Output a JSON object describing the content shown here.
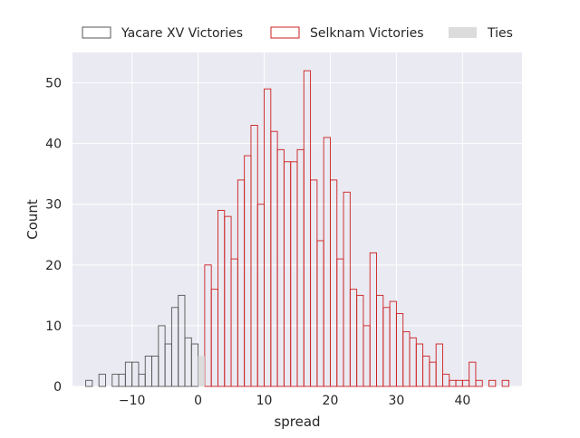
{
  "chart_data": {
    "type": "bar",
    "chart_kind": "histogram",
    "title": "",
    "xlabel": "spread",
    "ylabel": "Count",
    "xlim": [
      -19,
      49
    ],
    "ylim": [
      0,
      55
    ],
    "xticks": [
      -10,
      0,
      10,
      20,
      30,
      40
    ],
    "yticks": [
      0,
      10,
      20,
      30,
      40,
      50
    ],
    "bin_width": 1,
    "grid": true,
    "legend_placement": "top",
    "legend_columns": 3,
    "series": [
      {
        "name": "Yacare XV Victories",
        "style": "step-outline",
        "color": "#555555",
        "bins": [
          [
            -17,
            1
          ],
          [
            -16,
            0
          ],
          [
            -15,
            2
          ],
          [
            -14,
            0
          ],
          [
            -13,
            2
          ],
          [
            -12,
            2
          ],
          [
            -11,
            4
          ],
          [
            -10,
            4
          ],
          [
            -9,
            2
          ],
          [
            -8,
            5
          ],
          [
            -7,
            5
          ],
          [
            -6,
            10
          ],
          [
            -5,
            7
          ],
          [
            -4,
            13
          ],
          [
            -3,
            15
          ],
          [
            -2,
            8
          ],
          [
            -1,
            7
          ]
        ]
      },
      {
        "name": "Selknam Victories",
        "style": "step-outline",
        "color": "#cc1f1f",
        "bins": [
          [
            1,
            20
          ],
          [
            2,
            16
          ],
          [
            3,
            29
          ],
          [
            4,
            28
          ],
          [
            5,
            21
          ],
          [
            6,
            34
          ],
          [
            7,
            38
          ],
          [
            8,
            43
          ],
          [
            9,
            30
          ],
          [
            10,
            49
          ],
          [
            11,
            42
          ],
          [
            12,
            39
          ],
          [
            13,
            37
          ],
          [
            14,
            37
          ],
          [
            15,
            39
          ],
          [
            16,
            52
          ],
          [
            17,
            34
          ],
          [
            18,
            24
          ],
          [
            19,
            41
          ],
          [
            20,
            34
          ],
          [
            21,
            21
          ],
          [
            22,
            32
          ],
          [
            23,
            16
          ],
          [
            24,
            15
          ],
          [
            25,
            10
          ],
          [
            26,
            22
          ],
          [
            27,
            15
          ],
          [
            28,
            13
          ],
          [
            29,
            14
          ],
          [
            30,
            12
          ],
          [
            31,
            9
          ],
          [
            32,
            8
          ],
          [
            33,
            7
          ],
          [
            34,
            5
          ],
          [
            35,
            4
          ],
          [
            36,
            7
          ],
          [
            37,
            2
          ],
          [
            38,
            1
          ],
          [
            39,
            1
          ],
          [
            40,
            1
          ],
          [
            41,
            4
          ],
          [
            42,
            1
          ],
          [
            43,
            0
          ],
          [
            44,
            1
          ],
          [
            45,
            0
          ],
          [
            46,
            1
          ]
        ]
      },
      {
        "name": "Ties",
        "style": "filled",
        "color": "#dcdcdc",
        "bins": [
          [
            0,
            5
          ]
        ]
      }
    ]
  }
}
